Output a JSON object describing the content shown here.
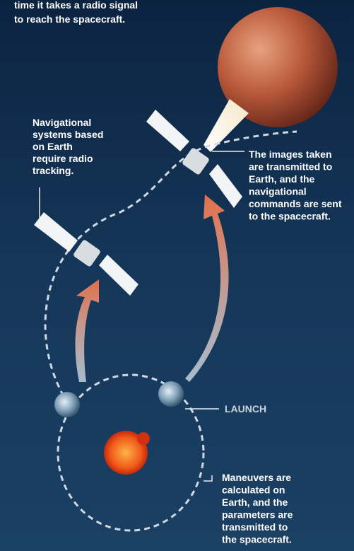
{
  "intro": {
    "lines": [
      "time it takes a radio signal",
      "to reach the spacecraft."
    ]
  },
  "labels": [
    {
      "lines": [
        "Navigational",
        "systems based",
        "on Earth",
        "require radio",
        "tracking."
      ]
    },
    {
      "lines": [
        "The images taken",
        "are transmitted to",
        "Earth, and the",
        "navigational",
        "commands are sent",
        "to the spacecraft."
      ]
    },
    {
      "lines": [
        "Maneuvers are",
        "calculated on",
        "Earth, and the",
        "parameters are",
        "transmitted to",
        "the spacecraft."
      ]
    }
  ],
  "launch": "LAUNCH"
}
